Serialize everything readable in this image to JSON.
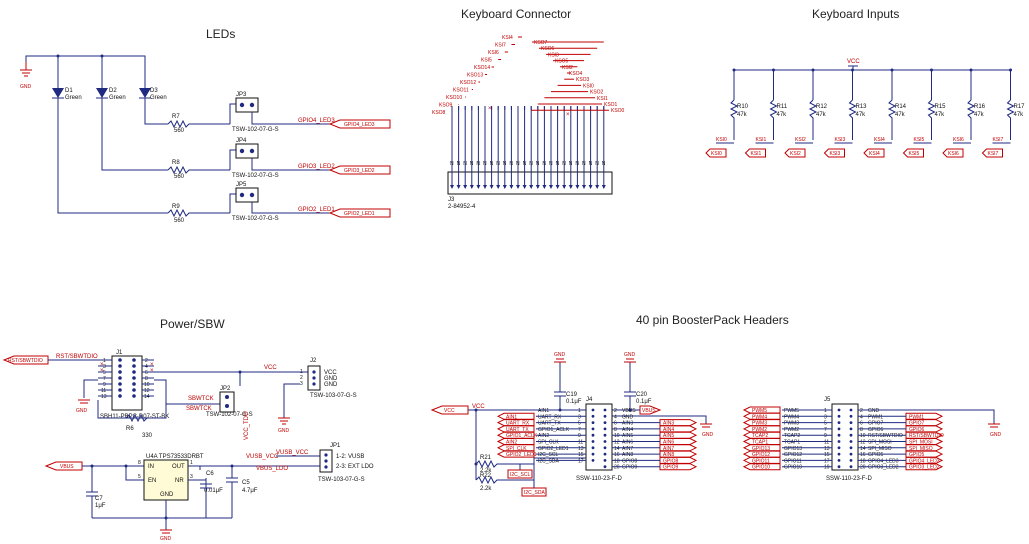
{
  "titles": {
    "leds": "LEDs",
    "keyboard_connector": "Keyboard Connector",
    "keyboard_inputs": "Keyboard Inputs",
    "power_sbw": "Power/SBW",
    "boosterpack": "40 pin BoosterPack Headers"
  },
  "leds": {
    "gnd": "GND",
    "items": [
      {
        "ref": "D1",
        "color": "Green",
        "r_ref": "R7",
        "r_val": "560",
        "jp": "JP3",
        "jp_part": "TSW-102-07-G-S",
        "net": "GPIO4_LED3",
        "port": "GPIO4_LED3"
      },
      {
        "ref": "D2",
        "color": "Green",
        "r_ref": "R8",
        "r_val": "560",
        "jp": "JP4",
        "jp_part": "TSW-102-07-G-S",
        "net": "GPIO3_LED2",
        "port": "GPIO3_LED2"
      },
      {
        "ref": "D3",
        "color": "Green",
        "r_ref": "R9",
        "r_val": "560",
        "jp": "JP5",
        "jp_part": "TSW-102-07-G-S",
        "net": "GPIO2_LED1",
        "port": "GPIO2_LED1"
      }
    ]
  },
  "keyboard_connector": {
    "ref": "J3",
    "part": "2-84952-4",
    "left_labels": [
      "KSO8",
      "KSO9",
      "KSO10",
      "KSO11",
      "KSO12",
      "KSO13",
      "KSO14",
      "KSI5",
      "KSI6",
      "KSI7",
      "KSI4"
    ],
    "right_labels": [
      "KSO7",
      "KSO6",
      "KSI3",
      "KSO5",
      "KSI2",
      "KSO4",
      "KSO3",
      "KSI0",
      "KSO2",
      "KSI1",
      "KSO1",
      "KSO0"
    ]
  },
  "keyboard_inputs": {
    "vcc": "VCC",
    "resistors": [
      {
        "ref": "R10",
        "val": "47k",
        "net": "KSI0"
      },
      {
        "ref": "R11",
        "val": "47k",
        "net": "KSI1"
      },
      {
        "ref": "R12",
        "val": "47k",
        "net": "KSI2"
      },
      {
        "ref": "R13",
        "val": "47k",
        "net": "KSI3"
      },
      {
        "ref": "R14",
        "val": "47k",
        "net": "KSI4"
      },
      {
        "ref": "R15",
        "val": "47k",
        "net": "KSI5"
      },
      {
        "ref": "R16",
        "val": "47k",
        "net": "KSI6"
      },
      {
        "ref": "R17",
        "val": "47k",
        "net": "KSI7"
      }
    ]
  },
  "power": {
    "rst_port": "RST/SBWTDIO",
    "rst_net": "RST/SBWTDIO",
    "j1": "J1",
    "j1_part": "SBH11-PBPC-D07-ST-BK",
    "r6": "R6",
    "r6_val": "330",
    "sbwtck": "SBWTCK",
    "jp2": "JP2",
    "jp2_part": "TSW-102-07-G-S",
    "vcc": "VCC",
    "vcc_tdo": "VCC_TDO",
    "j2": "J2",
    "j2_part": "TSW-103-07-G-S",
    "j2_pins": [
      "VCC",
      "GND",
      "GND"
    ],
    "gnd": "GND",
    "vbus": "VBUS",
    "u4": "U4A TPS73533DRBT",
    "u4_in": "IN",
    "u4_en": "EN",
    "u4_out": "OUT",
    "u4_nr": "NR",
    "u4_gnd": "GND",
    "c6": "C6",
    "c6_val": "0.01μF",
    "c5": "C5",
    "c5_val": "4.7μF",
    "c7": "C7",
    "c7_val": "1μF",
    "vusb_vcc": "VUSB_VCC",
    "vbus_ldo": "VBUS_LDO",
    "jp1": "JP1",
    "jp1_part": "TSW-103-07-G-S",
    "jp1_opt1": "1-2: VUSB",
    "jp1_opt2": "2-3: EXT LDO"
  },
  "booster": {
    "j4": "J4",
    "j4_part": "SSW-110-23-F-D",
    "j5": "J5",
    "j5_part": "SSW-110-23-F-D",
    "c19": "C19",
    "c19_val": "0.1μF",
    "c20": "C20",
    "c20_val": "0.1μF",
    "vcc": "VCC",
    "vbus": "VBUS",
    "gnd": "GND",
    "r21": "R21",
    "r21_val": "2.2k",
    "r22": "R22",
    "r22_val": "2.2k",
    "i2c_scl": "I2C_SCL",
    "i2c_sda": "I2C_SDA",
    "j4_left_ports": [
      "AIN1",
      "UART_RX",
      "UART_TX",
      "GPIO1_ACLK",
      "AIN2",
      "SPI_CLK",
      "GPIO2_LED1"
    ],
    "j4_left_pins": [
      "AIN1",
      "UART_RX",
      "UART_TX",
      "GPIO1_ACLK",
      "AIN2",
      "SPI_CLK",
      "GPIO2_LED1",
      "I2C_SCL",
      "I2C_SDA"
    ],
    "j4_right_pins": [
      "VBUS",
      "GND",
      "AIN3",
      "AIN4",
      "AIN5",
      "AIN6",
      "AIN7",
      "AIN8",
      "GPIO8",
      "GPIO9"
    ],
    "j4_right_ports": [
      "AIN3",
      "AIN4",
      "AIN5",
      "AIN6",
      "AIN7",
      "AIN8",
      "GPIO8",
      "GPIO9"
    ],
    "j5_left_ports": [
      "PWM5",
      "PWM4",
      "PWM3",
      "PWM2",
      "TCAP2",
      "TCAP1",
      "GPIO13",
      "GPIO12",
      "GPIO11",
      "GPIO10"
    ],
    "j5_left_pins": [
      "PWM5",
      "PWM4",
      "PWM3",
      "PWM2",
      "TCAP2",
      "TCAP1",
      "GPIO13",
      "GPIO12",
      "GPIO11",
      "GPIO10"
    ],
    "j5_right_pins": [
      "GND",
      "PWM1",
      "GPIO7",
      "GPIO6",
      "RST/SBWTDIO",
      "SPI_MOSI",
      "SPI_MISO",
      "GPIO5",
      "GPIO4_LED3",
      "GPIO3_LED2"
    ],
    "j5_right_ports": [
      "PWM1",
      "GPIO7",
      "GPIO6",
      "RST/SBWTDIO",
      "SPI_MOSI",
      "SPI_MISO",
      "GPIO5",
      "GPIO4_LED3",
      "GPIO3_LED2"
    ]
  },
  "colors": {
    "wire": "#1f2a80",
    "net": "#c00000",
    "ic_fill": "#fffbd6"
  }
}
